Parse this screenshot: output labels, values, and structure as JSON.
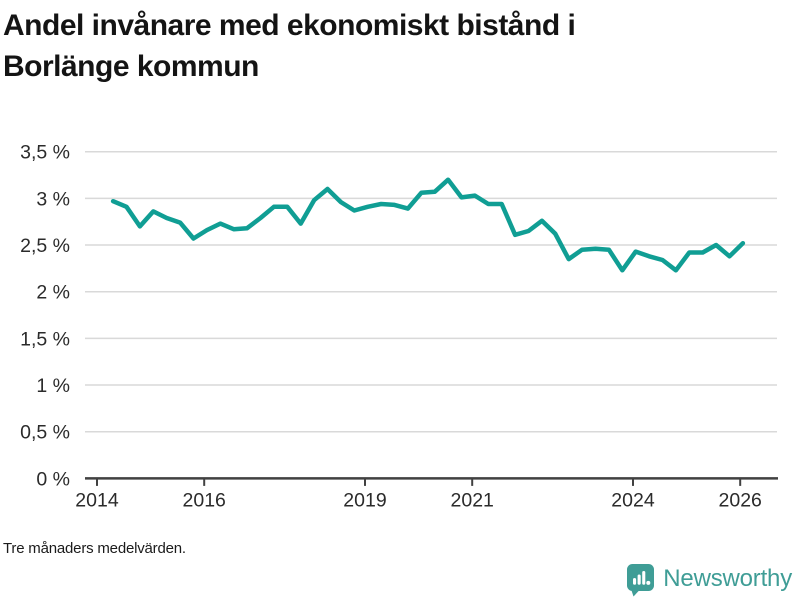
{
  "page": {
    "title_lines": [
      "Andel invånare med ekonomiskt bistånd i",
      "Borlänge kommun"
    ],
    "footnote": "Tre månaders medelvärden."
  },
  "branding": {
    "wordmark": "Newsworthy",
    "logo_icon": "bar-chart-speech-bubble-icon",
    "color": "#3f9d96"
  },
  "chart_data": {
    "type": "line",
    "title": "Andel invånare med ekonomiskt bistånd i Borlänge kommun",
    "xlabel": "",
    "ylabel": "",
    "unit": "%",
    "grid": true,
    "legend": "none",
    "xlim": [
      2013.8,
      2026.7
    ],
    "ylim": [
      0,
      3.5
    ],
    "x_ticks": [
      {
        "value": 2014,
        "label": "2014"
      },
      {
        "value": 2016,
        "label": "2016"
      },
      {
        "value": 2019,
        "label": "2019"
      },
      {
        "value": 2021,
        "label": "2021"
      },
      {
        "value": 2024,
        "label": "2024"
      },
      {
        "value": 2026,
        "label": "2026"
      }
    ],
    "y_ticks": [
      {
        "value": 0,
        "label": "0 %"
      },
      {
        "value": 0.5,
        "label": "0,5 %"
      },
      {
        "value": 1,
        "label": "1 %"
      },
      {
        "value": 1.5,
        "label": "1,5 %"
      },
      {
        "value": 2,
        "label": "2 %"
      },
      {
        "value": 2.5,
        "label": "2,5 %"
      },
      {
        "value": 3,
        "label": "3 %"
      },
      {
        "value": 3.5,
        "label": "3,5 %"
      }
    ],
    "series": [
      {
        "name": "Andel invånare med ekonomiskt bistånd",
        "color": "#109e94",
        "x_start": 2014.3,
        "x_step": 0.25,
        "values": [
          2.97,
          2.91,
          2.7,
          2.86,
          2.79,
          2.74,
          2.57,
          2.66,
          2.73,
          2.67,
          2.68,
          2.79,
          2.91,
          2.91,
          2.73,
          2.98,
          3.1,
          2.96,
          2.87,
          2.91,
          2.94,
          2.93,
          2.89,
          3.06,
          3.07,
          3.2,
          3.01,
          3.03,
          2.94,
          2.94,
          2.61,
          2.65,
          2.76,
          2.62,
          2.35,
          2.45,
          2.46,
          2.45,
          2.23,
          2.43,
          2.38,
          2.34,
          2.23,
          2.42,
          2.42,
          2.5,
          2.38,
          2.52
        ]
      }
    ],
    "colors": {
      "grid": "#d9d9d9",
      "axis": "#414141",
      "tick_label": "#2b2b2b"
    }
  }
}
